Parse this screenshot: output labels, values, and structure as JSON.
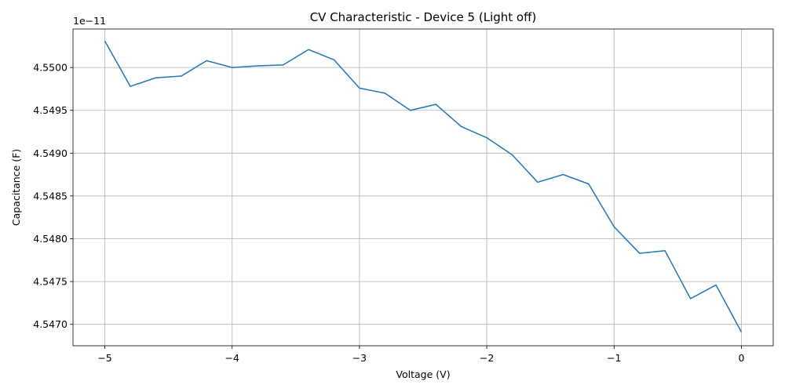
{
  "chart_data": {
    "type": "line",
    "title": "CV Characteristic - Device 5 (Light off)",
    "xlabel": "Voltage (V)",
    "ylabel": "Capacitance (F)",
    "offset_text": "1e−11",
    "xlim": [
      -5.25,
      0.25
    ],
    "ylim": [
      4.54675,
      4.55045
    ],
    "grid": true,
    "x_ticks": [
      -5,
      -4,
      -3,
      -2,
      -1,
      0
    ],
    "x_tick_labels": [
      "−5",
      "−4",
      "−3",
      "−2",
      "−1",
      "0"
    ],
    "y_ticks": [
      4.547,
      4.5475,
      4.548,
      4.5485,
      4.549,
      4.5495,
      4.55
    ],
    "y_tick_labels": [
      "4.5470",
      "4.5475",
      "4.5480",
      "4.5485",
      "4.5490",
      "4.5495",
      "4.5500"
    ],
    "series": [
      {
        "color": "#1f77b4",
        "x": [
          -5.0,
          -4.8,
          -4.6,
          -4.4,
          -4.2,
          -4.0,
          -3.8,
          -3.6,
          -3.4,
          -3.2,
          -3.0,
          -2.8,
          -2.6,
          -2.4,
          -2.2,
          -2.0,
          -1.8,
          -1.6,
          -1.4,
          -1.2,
          -1.0,
          -0.8,
          -0.6,
          -0.4,
          -0.2,
          0.0
        ],
        "y": [
          4.55031,
          4.54978,
          4.54988,
          4.5499,
          4.55008,
          4.55,
          4.55002,
          4.55003,
          4.55021,
          4.55009,
          4.54976,
          4.5497,
          4.5495,
          4.54957,
          4.54931,
          4.54918,
          4.54898,
          4.54866,
          4.54875,
          4.54864,
          4.54814,
          4.54783,
          4.54786,
          4.5473,
          4.54746,
          4.54691
        ]
      }
    ]
  }
}
